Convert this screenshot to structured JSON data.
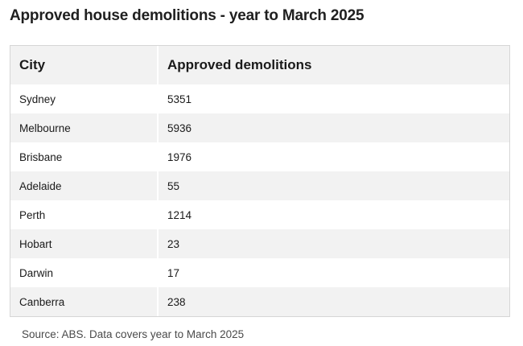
{
  "title": "Approved house demolitions - year to March 2025",
  "chart_data": {
    "type": "table",
    "columns": [
      "City",
      "Approved demolitions"
    ],
    "rows": [
      {
        "city": "Sydney",
        "value": 5351
      },
      {
        "city": "Melbourne",
        "value": 5936
      },
      {
        "city": "Brisbane",
        "value": 1976
      },
      {
        "city": "Adelaide",
        "value": 55
      },
      {
        "city": "Perth",
        "value": 1214
      },
      {
        "city": "Hobart",
        "value": 23
      },
      {
        "city": "Darwin",
        "value": 17
      },
      {
        "city": "Canberra",
        "value": 238
      }
    ]
  },
  "source": "Source: ABS. Data covers year to March 2025",
  "colors": {
    "header_bg": "#f2f2f2",
    "stripe_bg": "#f2f2f2",
    "border": "#d6d6d6"
  }
}
